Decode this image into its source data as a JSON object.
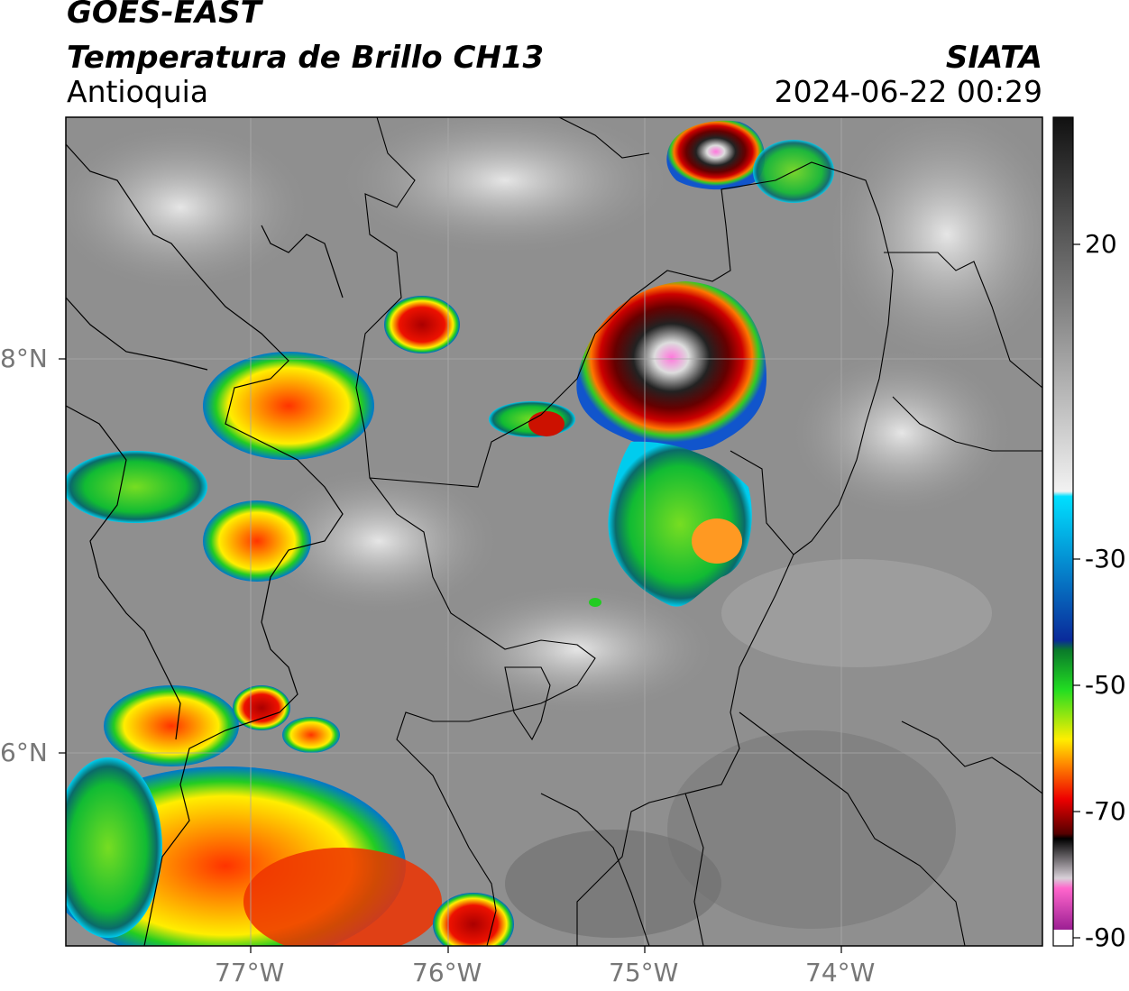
{
  "header": {
    "satellite": "GOES-EAST",
    "product": "Temperatura de Brillo CH13",
    "region": "Antioquia",
    "source": "SIATA",
    "datetime": "2024-06-22 00:29"
  },
  "axes": {
    "lon_ticks": [
      "77°W",
      "76°W",
      "75°W",
      "74°W"
    ],
    "lat_ticks": [
      "8°N",
      "6°N"
    ]
  },
  "colorbar": {
    "tick_labels": [
      "20",
      "-30",
      "-50",
      "-70",
      "-90"
    ],
    "stops": [
      {
        "t": 30,
        "color": "#111111"
      },
      {
        "t": 0,
        "color": "#f2f2f2"
      },
      {
        "t": -1,
        "color": "#00e0ff"
      },
      {
        "t": -30,
        "color": "#0a2a9a"
      },
      {
        "t": -32,
        "color": "#0a7a2a"
      },
      {
        "t": -40,
        "color": "#22dd22"
      },
      {
        "t": -50,
        "color": "#ffee00"
      },
      {
        "t": -55,
        "color": "#ff8800"
      },
      {
        "t": -62,
        "color": "#ee0000"
      },
      {
        "t": -69,
        "color": "#550000"
      },
      {
        "t": -70,
        "color": "#000000"
      },
      {
        "t": -78,
        "color": "#d8d0d8"
      },
      {
        "t": -80,
        "color": "#ff66cc"
      },
      {
        "t": -90,
        "color": "#881188"
      }
    ]
  }
}
